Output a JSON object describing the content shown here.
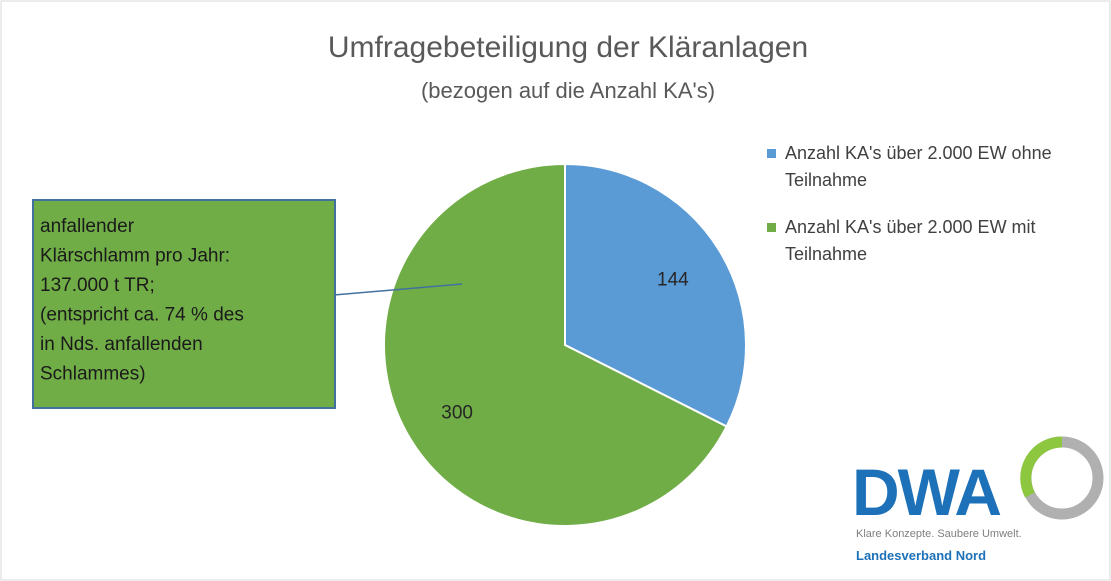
{
  "chart_data": {
    "type": "pie",
    "title": "Umfragebeteiligung der Kläranlagen",
    "subtitle": "(bezogen auf die Anzahl KA's)",
    "categories": [
      "Anzahl KA's über 2.000 EW ohne Teilnahme",
      "Anzahl KA's über 2.000 EW mit Teilnahme"
    ],
    "values": [
      144,
      300
    ],
    "colors": [
      "#5b9bd5",
      "#70ad47"
    ],
    "legend": "right",
    "annotation": [
      "anfallender",
      "Klärschlamm pro Jahr:",
      "137.000 t TR;",
      "(entspricht ca. 74 % des",
      "in Nds. anfallenden",
      "Schlammes)"
    ]
  },
  "logo": {
    "text": "DWA",
    "tagline": "Klare Konzepte. Saubere Umwelt.",
    "region": "Landesverband Nord"
  }
}
